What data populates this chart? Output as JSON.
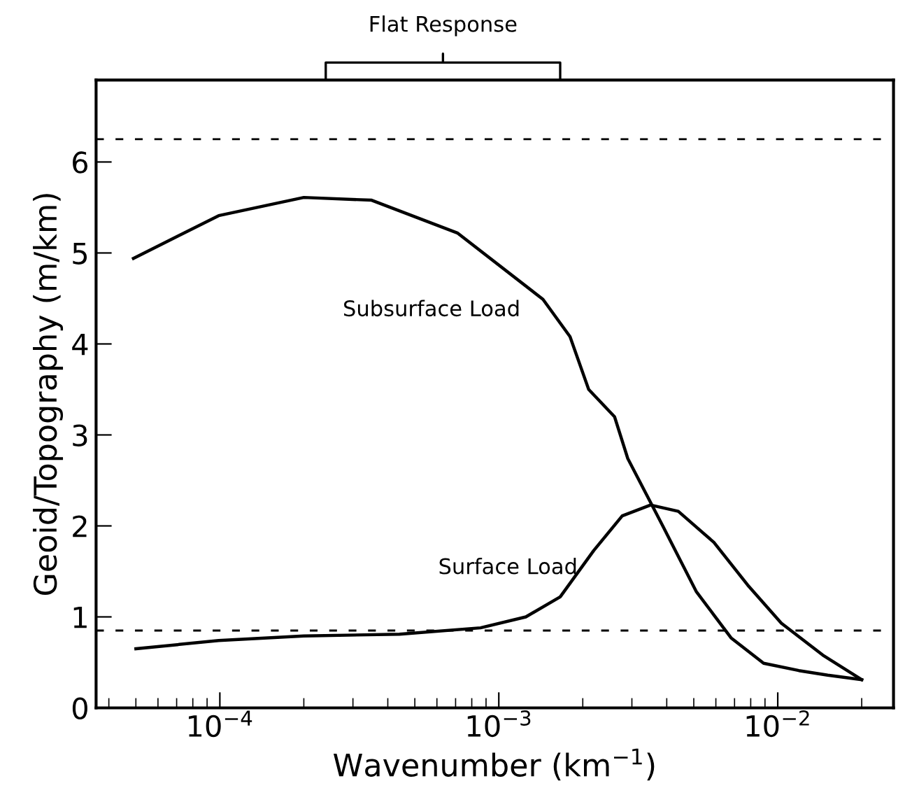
{
  "chart_data": {
    "type": "line",
    "xlabel": "Wavenumber (km$^{−1}$)",
    "ylabel": "Geoid/Topography (m/km)",
    "log": "x",
    "xlim": [
      3.6e-05,
      0.026
    ],
    "ylim": [
      0,
      6.9
    ],
    "xticks": [
      {
        "value": 0.0001,
        "label": "10$^{−4}$"
      },
      {
        "value": 0.001,
        "label": "10$^{−3}$"
      },
      {
        "value": 0.01,
        "label": "10$^{−2}$"
      }
    ],
    "yticks": [
      0,
      1,
      2,
      3,
      4,
      5,
      6
    ],
    "grid": false,
    "legend": false,
    "line_style": "solid",
    "marker": "none",
    "series": [
      {
        "name": "Subsurface Load",
        "color": "#000000",
        "x": [
          4.9e-05,
          9.9e-05,
          0.0002,
          0.00035,
          0.00071,
          0.00144,
          0.0018,
          0.0021,
          0.0026,
          0.0029,
          0.0039,
          0.0051,
          0.0068,
          0.0089,
          0.0119,
          0.0151,
          0.02
        ],
        "values": [
          4.94,
          5.41,
          5.61,
          5.58,
          5.22,
          4.49,
          4.08,
          3.5,
          3.2,
          2.74,
          1.98,
          1.28,
          0.77,
          0.49,
          0.41,
          0.36,
          0.31
        ]
      },
      {
        "name": "Surface Load",
        "color": "#000000",
        "x": [
          5e-05,
          9.9e-05,
          0.0002,
          0.00044,
          0.00086,
          0.00125,
          0.00166,
          0.00219,
          0.00277,
          0.0035,
          0.0044,
          0.0059,
          0.0078,
          0.0103,
          0.0145,
          0.02
        ],
        "values": [
          0.65,
          0.74,
          0.79,
          0.81,
          0.88,
          1.0,
          1.22,
          1.73,
          2.11,
          2.23,
          2.16,
          1.82,
          1.35,
          0.93,
          0.58,
          0.31
        ]
      }
    ],
    "ref_lines": [
      {
        "axis": "y",
        "value": 6.25,
        "color": "#000000",
        "line_style": "dashed"
      },
      {
        "axis": "y",
        "value": 0.85,
        "color": "#000000",
        "line_style": "dashed"
      }
    ],
    "annotations": [
      "Flat Response"
    ]
  }
}
